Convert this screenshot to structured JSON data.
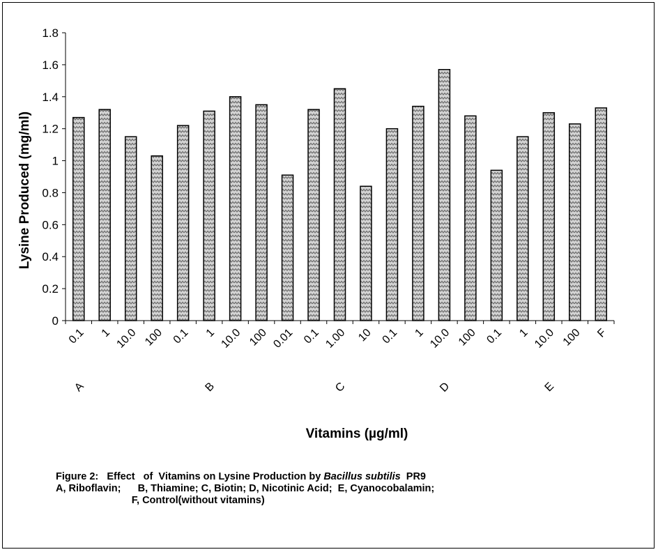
{
  "chart_data": {
    "type": "bar",
    "categories": [
      "0.1",
      "1",
      "10.0",
      "100",
      "0.1",
      "1",
      "10.0",
      "100",
      "0.01",
      "0.1",
      "1.00",
      "10",
      "0.1",
      "1",
      "10.0",
      "100",
      "0.1",
      "1",
      "10.0",
      "100",
      "F"
    ],
    "values": [
      1.27,
      1.32,
      1.15,
      1.03,
      1.22,
      1.31,
      1.4,
      1.35,
      0.91,
      1.32,
      1.45,
      0.84,
      1.2,
      1.34,
      1.57,
      1.28,
      0.94,
      1.15,
      1.3,
      1.23,
      1.33
    ],
    "group_labels": [
      {
        "label": "A",
        "index": 0
      },
      {
        "label": "B",
        "index": 5
      },
      {
        "label": "C",
        "index": 10
      },
      {
        "label": "D",
        "index": 14
      },
      {
        "label": "E",
        "index": 18
      }
    ],
    "xlabel": "Vitamins (µg/ml)",
    "ylabel": "Lysine Produced (mg/ml)",
    "ylim": [
      0,
      1.8
    ],
    "yticks": [
      "0",
      "0.2",
      "0.4",
      "0.6",
      "0.8",
      "1",
      "1.2",
      "1.4",
      "1.6",
      "1.8"
    ],
    "grid": false,
    "bar_fill": "zigzag pattern, grey"
  },
  "caption": {
    "line1_prefix": "Figure 2:   Effect   of  Vitamins on Lysine Production by ",
    "line1_species": "Bacillus subtilis",
    "line1_suffix": "  PR9",
    "line2": "A, Riboflavin;      B, Thiamine; C, Biotin; D, Nicotinic Acid;  E, Cyanocobalamin;",
    "line3": "                           F, Control(without vitamins)"
  }
}
